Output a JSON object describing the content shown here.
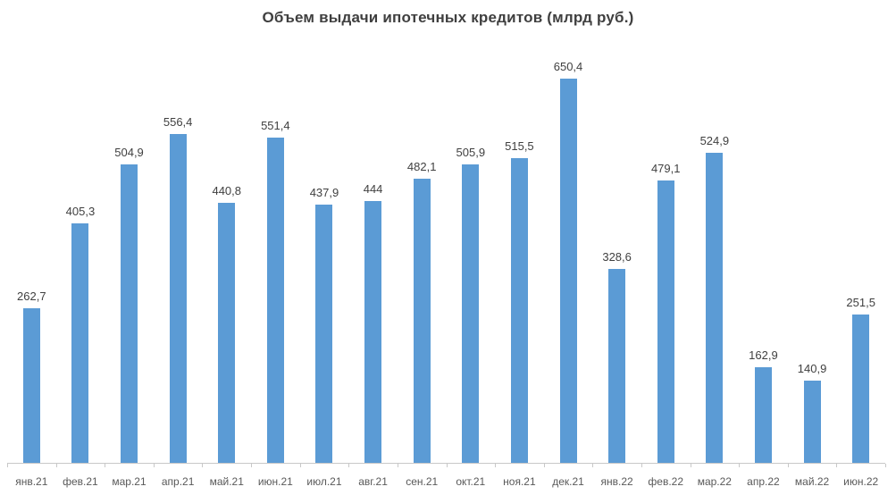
{
  "title": "Объем выдачи ипотечных кредитов (млрд руб.)",
  "colors": {
    "bar": "#5B9BD5",
    "title": "#3F3F3F",
    "data_label": "#404040",
    "axis_label": "#595959",
    "axis_line": "#C8C8C8"
  },
  "chart_data": {
    "type": "bar",
    "title": "Объем выдачи ипотечных кредитов (млрд руб.)",
    "categories": [
      "янв.21",
      "фев.21",
      "мар.21",
      "апр.21",
      "май.21",
      "июн.21",
      "июл.21",
      "авг.21",
      "сен.21",
      "окт.21",
      "ноя.21",
      "дек.21",
      "янв.22",
      "фев.22",
      "мар.22",
      "апр.22",
      "май.22",
      "июн.22"
    ],
    "values": [
      262.7,
      405.3,
      504.9,
      556.4,
      440.8,
      551.4,
      437.9,
      444,
      482.1,
      505.9,
      515.5,
      650.4,
      328.6,
      479.1,
      524.9,
      162.9,
      140.9,
      251.5
    ],
    "value_labels": [
      "262,7",
      "405,3",
      "504,9",
      "556,4",
      "440,8",
      "551,4",
      "437,9",
      "444",
      "482,1",
      "505,9",
      "515,5",
      "650,4",
      "328,6",
      "479,1",
      "524,9",
      "162,9",
      "140,9",
      "251,5"
    ],
    "xlabel": "",
    "ylabel": "",
    "ylim": [
      0,
      700
    ],
    "grid": false,
    "legend": "none",
    "data_labels": true,
    "bar_color": "#5B9BD5"
  }
}
